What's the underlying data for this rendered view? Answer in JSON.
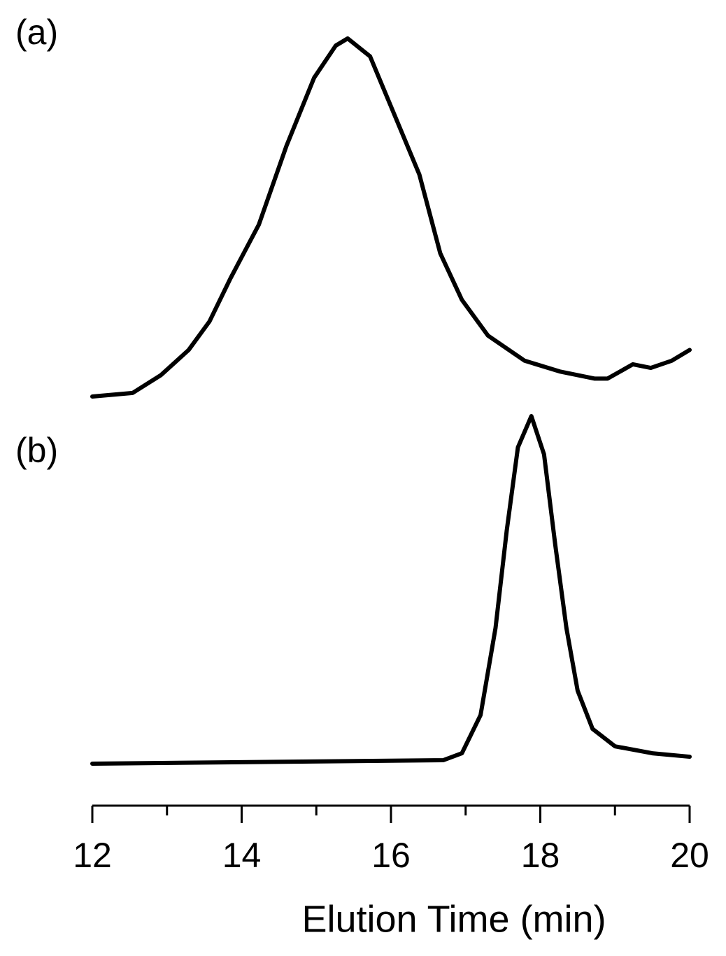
{
  "chart_data": {
    "type": "line",
    "xlabel": "Elution Time (min)",
    "xlim": [
      12,
      20
    ],
    "xticks": [
      12,
      14,
      16,
      18,
      20
    ],
    "xminorticks": [
      13,
      15,
      17,
      19
    ],
    "color": "#000000",
    "series": [
      {
        "name": "(a)",
        "ylim": [
          0,
          1
        ],
        "x": [
          12,
          12.54,
          12.92,
          13.29,
          13.57,
          13.85,
          14.23,
          14.6,
          14.97,
          15.26,
          15.42,
          15.72,
          16.0,
          16.38,
          16.66,
          16.95,
          17.3,
          17.79,
          18.26,
          18.73,
          18.9,
          19.24,
          19.48,
          19.76,
          20
        ],
        "values": [
          0,
          0.01,
          0.06,
          0.13,
          0.21,
          0.33,
          0.48,
          0.7,
          0.89,
          0.98,
          1.0,
          0.95,
          0.81,
          0.62,
          0.4,
          0.27,
          0.17,
          0.1,
          0.07,
          0.05,
          0.05,
          0.09,
          0.08,
          0.1,
          0.13
        ]
      },
      {
        "name": "(b)",
        "ylim": [
          0,
          1
        ],
        "x": [
          12,
          16.7,
          16.95,
          17.2,
          17.4,
          17.55,
          17.7,
          17.88,
          18.05,
          18.2,
          18.35,
          18.5,
          18.7,
          19.0,
          19.5,
          20
        ],
        "values": [
          0,
          0.01,
          0.03,
          0.14,
          0.39,
          0.67,
          0.91,
          1.0,
          0.89,
          0.63,
          0.39,
          0.21,
          0.1,
          0.05,
          0.03,
          0.02
        ]
      }
    ]
  }
}
